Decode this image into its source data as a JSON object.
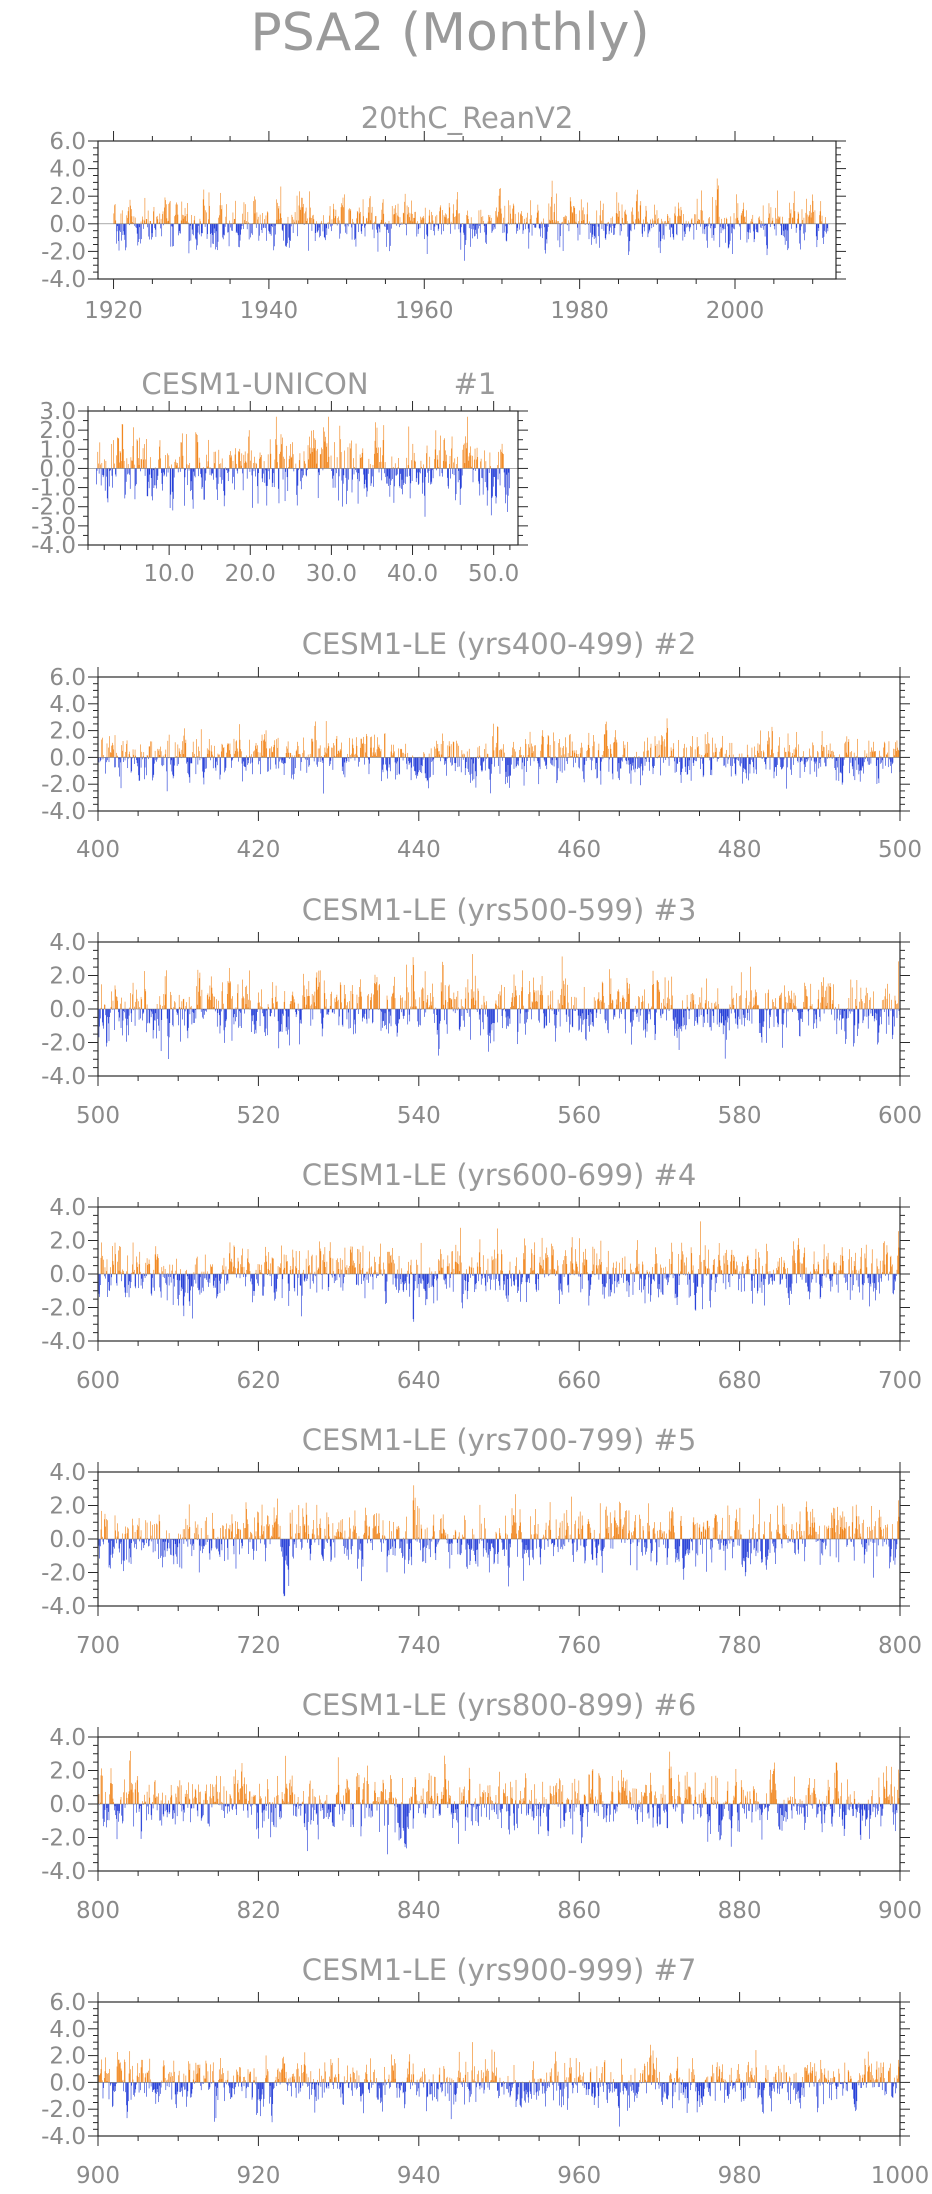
{
  "figure_title": "PSA2 (Monthly)",
  "colors": {
    "positive": "#f07f10",
    "negative": "#1a35d6",
    "outline": "#2a2a2a",
    "text": "#8a8a8a"
  },
  "chart_data": [
    {
      "type": "bar",
      "title": "20thC_ReanV2",
      "x_start": 1920,
      "x_end": 2012,
      "xlim": [
        1918,
        2013
      ],
      "ylim": [
        -4,
        6
      ],
      "xticks": [
        1920,
        1940,
        1960,
        1980,
        2000
      ],
      "xtick_labels": [
        "1920",
        "1940",
        "1960",
        "1980",
        "2000"
      ],
      "yticks": [
        -4,
        -2,
        0,
        2,
        4,
        6
      ],
      "ytick_labels": [
        "-4.0",
        "-2.0",
        "0.0",
        "2.0",
        "4.0",
        "6.0"
      ]
    },
    {
      "type": "bar",
      "title": "CESM1-UNICON",
      "member": "#1",
      "x_start": 1,
      "x_end": 52,
      "xlim": [
        0,
        53
      ],
      "ylim": [
        -4,
        3
      ],
      "xticks": [
        10,
        20,
        30,
        40,
        50
      ],
      "xtick_labels": [
        "10.0",
        "20.0",
        "30.0",
        "40.0",
        "50.0"
      ],
      "yticks": [
        -4,
        -3,
        -2,
        -1,
        0,
        1,
        2,
        3
      ],
      "ytick_labels": [
        "-4.0",
        "-3.0",
        "-2.0",
        "-1.0",
        "0.0",
        "1.0",
        "2.0",
        "3.0"
      ]
    },
    {
      "type": "bar",
      "title": "CESM1-LE (yrs400-499) #2",
      "x_start": 400,
      "x_end": 500,
      "xlim": [
        400,
        500
      ],
      "ylim": [
        -4,
        6
      ],
      "xticks": [
        400,
        420,
        440,
        460,
        480,
        500
      ],
      "xtick_labels": [
        "400",
        "420",
        "440",
        "460",
        "480",
        "500"
      ],
      "yticks": [
        -4,
        -2,
        0,
        2,
        4,
        6
      ],
      "ytick_labels": [
        "-4.0",
        "-2.0",
        "0.0",
        "2.0",
        "4.0",
        "6.0"
      ]
    },
    {
      "type": "bar",
      "title": "CESM1-LE (yrs500-599) #3",
      "x_start": 500,
      "x_end": 600,
      "xlim": [
        500,
        600
      ],
      "ylim": [
        -4,
        4
      ],
      "xticks": [
        500,
        520,
        540,
        560,
        580,
        600
      ],
      "xtick_labels": [
        "500",
        "520",
        "540",
        "560",
        "580",
        "600"
      ],
      "yticks": [
        -4,
        -2,
        0,
        2,
        4
      ],
      "ytick_labels": [
        "-4.0",
        "-2.0",
        "0.0",
        "2.0",
        "4.0"
      ]
    },
    {
      "type": "bar",
      "title": "CESM1-LE (yrs600-699) #4",
      "x_start": 600,
      "x_end": 700,
      "xlim": [
        600,
        700
      ],
      "ylim": [
        -4,
        4
      ],
      "xticks": [
        600,
        620,
        640,
        660,
        680,
        700
      ],
      "xtick_labels": [
        "600",
        "620",
        "640",
        "660",
        "680",
        "700"
      ],
      "yticks": [
        -4,
        -2,
        0,
        2,
        4
      ],
      "ytick_labels": [
        "-4.0",
        "-2.0",
        "0.0",
        "2.0",
        "4.0"
      ]
    },
    {
      "type": "bar",
      "title": "CESM1-LE (yrs700-799) #5",
      "x_start": 700,
      "x_end": 800,
      "xlim": [
        700,
        800
      ],
      "ylim": [
        -4,
        4
      ],
      "xticks": [
        700,
        720,
        740,
        760,
        780,
        800
      ],
      "xtick_labels": [
        "700",
        "720",
        "740",
        "760",
        "780",
        "800"
      ],
      "yticks": [
        -4,
        -2,
        0,
        2,
        4
      ],
      "ytick_labels": [
        "-4.0",
        "-2.0",
        "0.0",
        "2.0",
        "4.0"
      ]
    },
    {
      "type": "bar",
      "title": "CESM1-LE (yrs800-899) #6",
      "x_start": 800,
      "x_end": 900,
      "xlim": [
        800,
        900
      ],
      "ylim": [
        -4,
        4
      ],
      "xticks": [
        800,
        820,
        840,
        860,
        880,
        900
      ],
      "xtick_labels": [
        "800",
        "820",
        "840",
        "860",
        "880",
        "900"
      ],
      "yticks": [
        -4,
        -2,
        0,
        2,
        4
      ],
      "ytick_labels": [
        "-4.0",
        "-2.0",
        "0.0",
        "2.0",
        "4.0"
      ]
    },
    {
      "type": "bar",
      "title": "CESM1-LE (yrs900-999) #7",
      "x_start": 900,
      "x_end": 1000,
      "xlim": [
        900,
        1000
      ],
      "ylim": [
        -4,
        6
      ],
      "xticks": [
        900,
        920,
        940,
        960,
        980,
        1000
      ],
      "xtick_labels": [
        "900",
        "920",
        "940",
        "960",
        "980",
        "1000"
      ],
      "yticks": [
        -4,
        -2,
        0,
        2,
        4,
        6
      ],
      "ytick_labels": [
        "-4.0",
        "-2.0",
        "0.0",
        "2.0",
        "4.0",
        "6.0"
      ]
    }
  ]
}
